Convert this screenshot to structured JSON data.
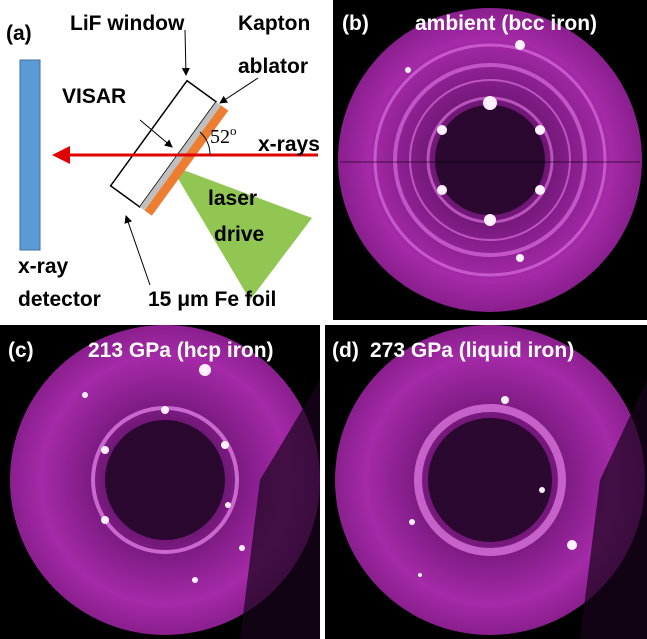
{
  "panel_a": {
    "label": "(a)",
    "lif_window": "LiF window",
    "kapton": [
      "Kapton",
      "ablator"
    ],
    "visar": "VISAR",
    "angle": "52",
    "angle_unit": "o",
    "xrays": "x-rays",
    "laser_drive": [
      "laser",
      "drive"
    ],
    "detector": [
      "x-ray",
      "detector"
    ],
    "foil": "15 μm Fe foil"
  },
  "panels": [
    {
      "label": "(b)",
      "caption": "ambient (bcc iron)"
    },
    {
      "label": "(c)",
      "caption": "213 GPa (hcp iron)"
    },
    {
      "label": "(d)",
      "caption": "273 GPa (liquid iron)"
    }
  ]
}
